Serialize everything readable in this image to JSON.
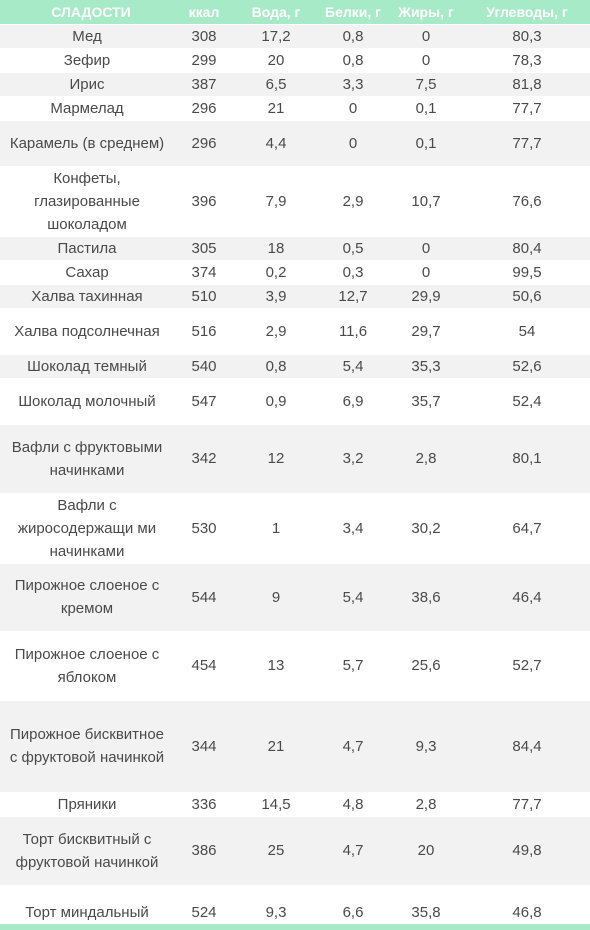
{
  "table": {
    "headers": [
      "СЛАДОСТИ",
      "ккал",
      "Вода, г",
      "Белки, г",
      "Жиры, г",
      "Углеводы, г"
    ],
    "rows": [
      {
        "name": "Мед",
        "kcal": "308",
        "water": "17,2",
        "protein": "0,8",
        "fat": "0",
        "carbs": "80,3"
      },
      {
        "name": "Зефир",
        "kcal": "299",
        "water": "20",
        "protein": "0,8",
        "fat": "0",
        "carbs": "78,3"
      },
      {
        "name": "Ирис",
        "kcal": "387",
        "water": "6,5",
        "protein": "3,3",
        "fat": "7,5",
        "carbs": "81,8"
      },
      {
        "name": "Мармелад",
        "kcal": "296",
        "water": "21",
        "protein": "0",
        "fat": "0,1",
        "carbs": "77,7"
      },
      {
        "name": "Карамель (в среднем)",
        "kcal": "296",
        "water": "4,4",
        "protein": "0",
        "fat": "0,1",
        "carbs": "77,7"
      },
      {
        "name": "Конфеты, глазированные шоколадом",
        "kcal": "396",
        "water": "7,9",
        "protein": "2,9",
        "fat": "10,7",
        "carbs": "76,6"
      },
      {
        "name": "Пастила",
        "kcal": "305",
        "water": "18",
        "protein": "0,5",
        "fat": "0",
        "carbs": "80,4"
      },
      {
        "name": "Сахар",
        "kcal": "374",
        "water": "0,2",
        "protein": "0,3",
        "fat": "0",
        "carbs": "99,5"
      },
      {
        "name": "Халва тахинная",
        "kcal": "510",
        "water": "3,9",
        "protein": "12,7",
        "fat": "29,9",
        "carbs": "50,6"
      },
      {
        "name": "Халва подсолнечная",
        "kcal": "516",
        "water": "2,9",
        "protein": "11,6",
        "fat": "29,7",
        "carbs": "54"
      },
      {
        "name": "Шоколад темный",
        "kcal": "540",
        "water": "0,8",
        "protein": "5,4",
        "fat": "35,3",
        "carbs": "52,6"
      },
      {
        "name": "Шоколад молочный",
        "kcal": "547",
        "water": "0,9",
        "protein": "6,9",
        "fat": "35,7",
        "carbs": "52,4"
      },
      {
        "name": "Вафли с фруктовыми начинками",
        "kcal": "342",
        "water": "12",
        "protein": "3,2",
        "fat": "2,8",
        "carbs": "80,1"
      },
      {
        "name": "Вафли с жиросодержащи ми начинками",
        "kcal": "530",
        "water": "1",
        "protein": "3,4",
        "fat": "30,2",
        "carbs": "64,7"
      },
      {
        "name": "Пирожное слоеное с кремом",
        "kcal": "544",
        "water": "9",
        "protein": "5,4",
        "fat": "38,6",
        "carbs": "46,4"
      },
      {
        "name": "Пирожное слоеное с яблоком",
        "kcal": "454",
        "water": "13",
        "protein": "5,7",
        "fat": "25,6",
        "carbs": "52,7"
      },
      {
        "name": "Пирожное бисквитное с фруктовой начинкой",
        "kcal": "344",
        "water": "21",
        "protein": "4,7",
        "fat": "9,3",
        "carbs": "84,4"
      },
      {
        "name": "Пряники",
        "kcal": "336",
        "water": "14,5",
        "protein": "4,8",
        "fat": "2,8",
        "carbs": "77,7"
      },
      {
        "name": "Торт бисквитный с фруктовой начинкой",
        "kcal": "386",
        "water": "25",
        "protein": "4,7",
        "fat": "20",
        "carbs": "49,8"
      },
      {
        "name": "Торт миндальный",
        "kcal": "524",
        "water": "9,3",
        "protein": "6,6",
        "fat": "35,8",
        "carbs": "46,8"
      }
    ]
  },
  "colors": {
    "header_bg": "#a7eac7",
    "header_text": "#ffffff",
    "row_alt": "#f2f2f2",
    "text": "#4a4a4a"
  }
}
